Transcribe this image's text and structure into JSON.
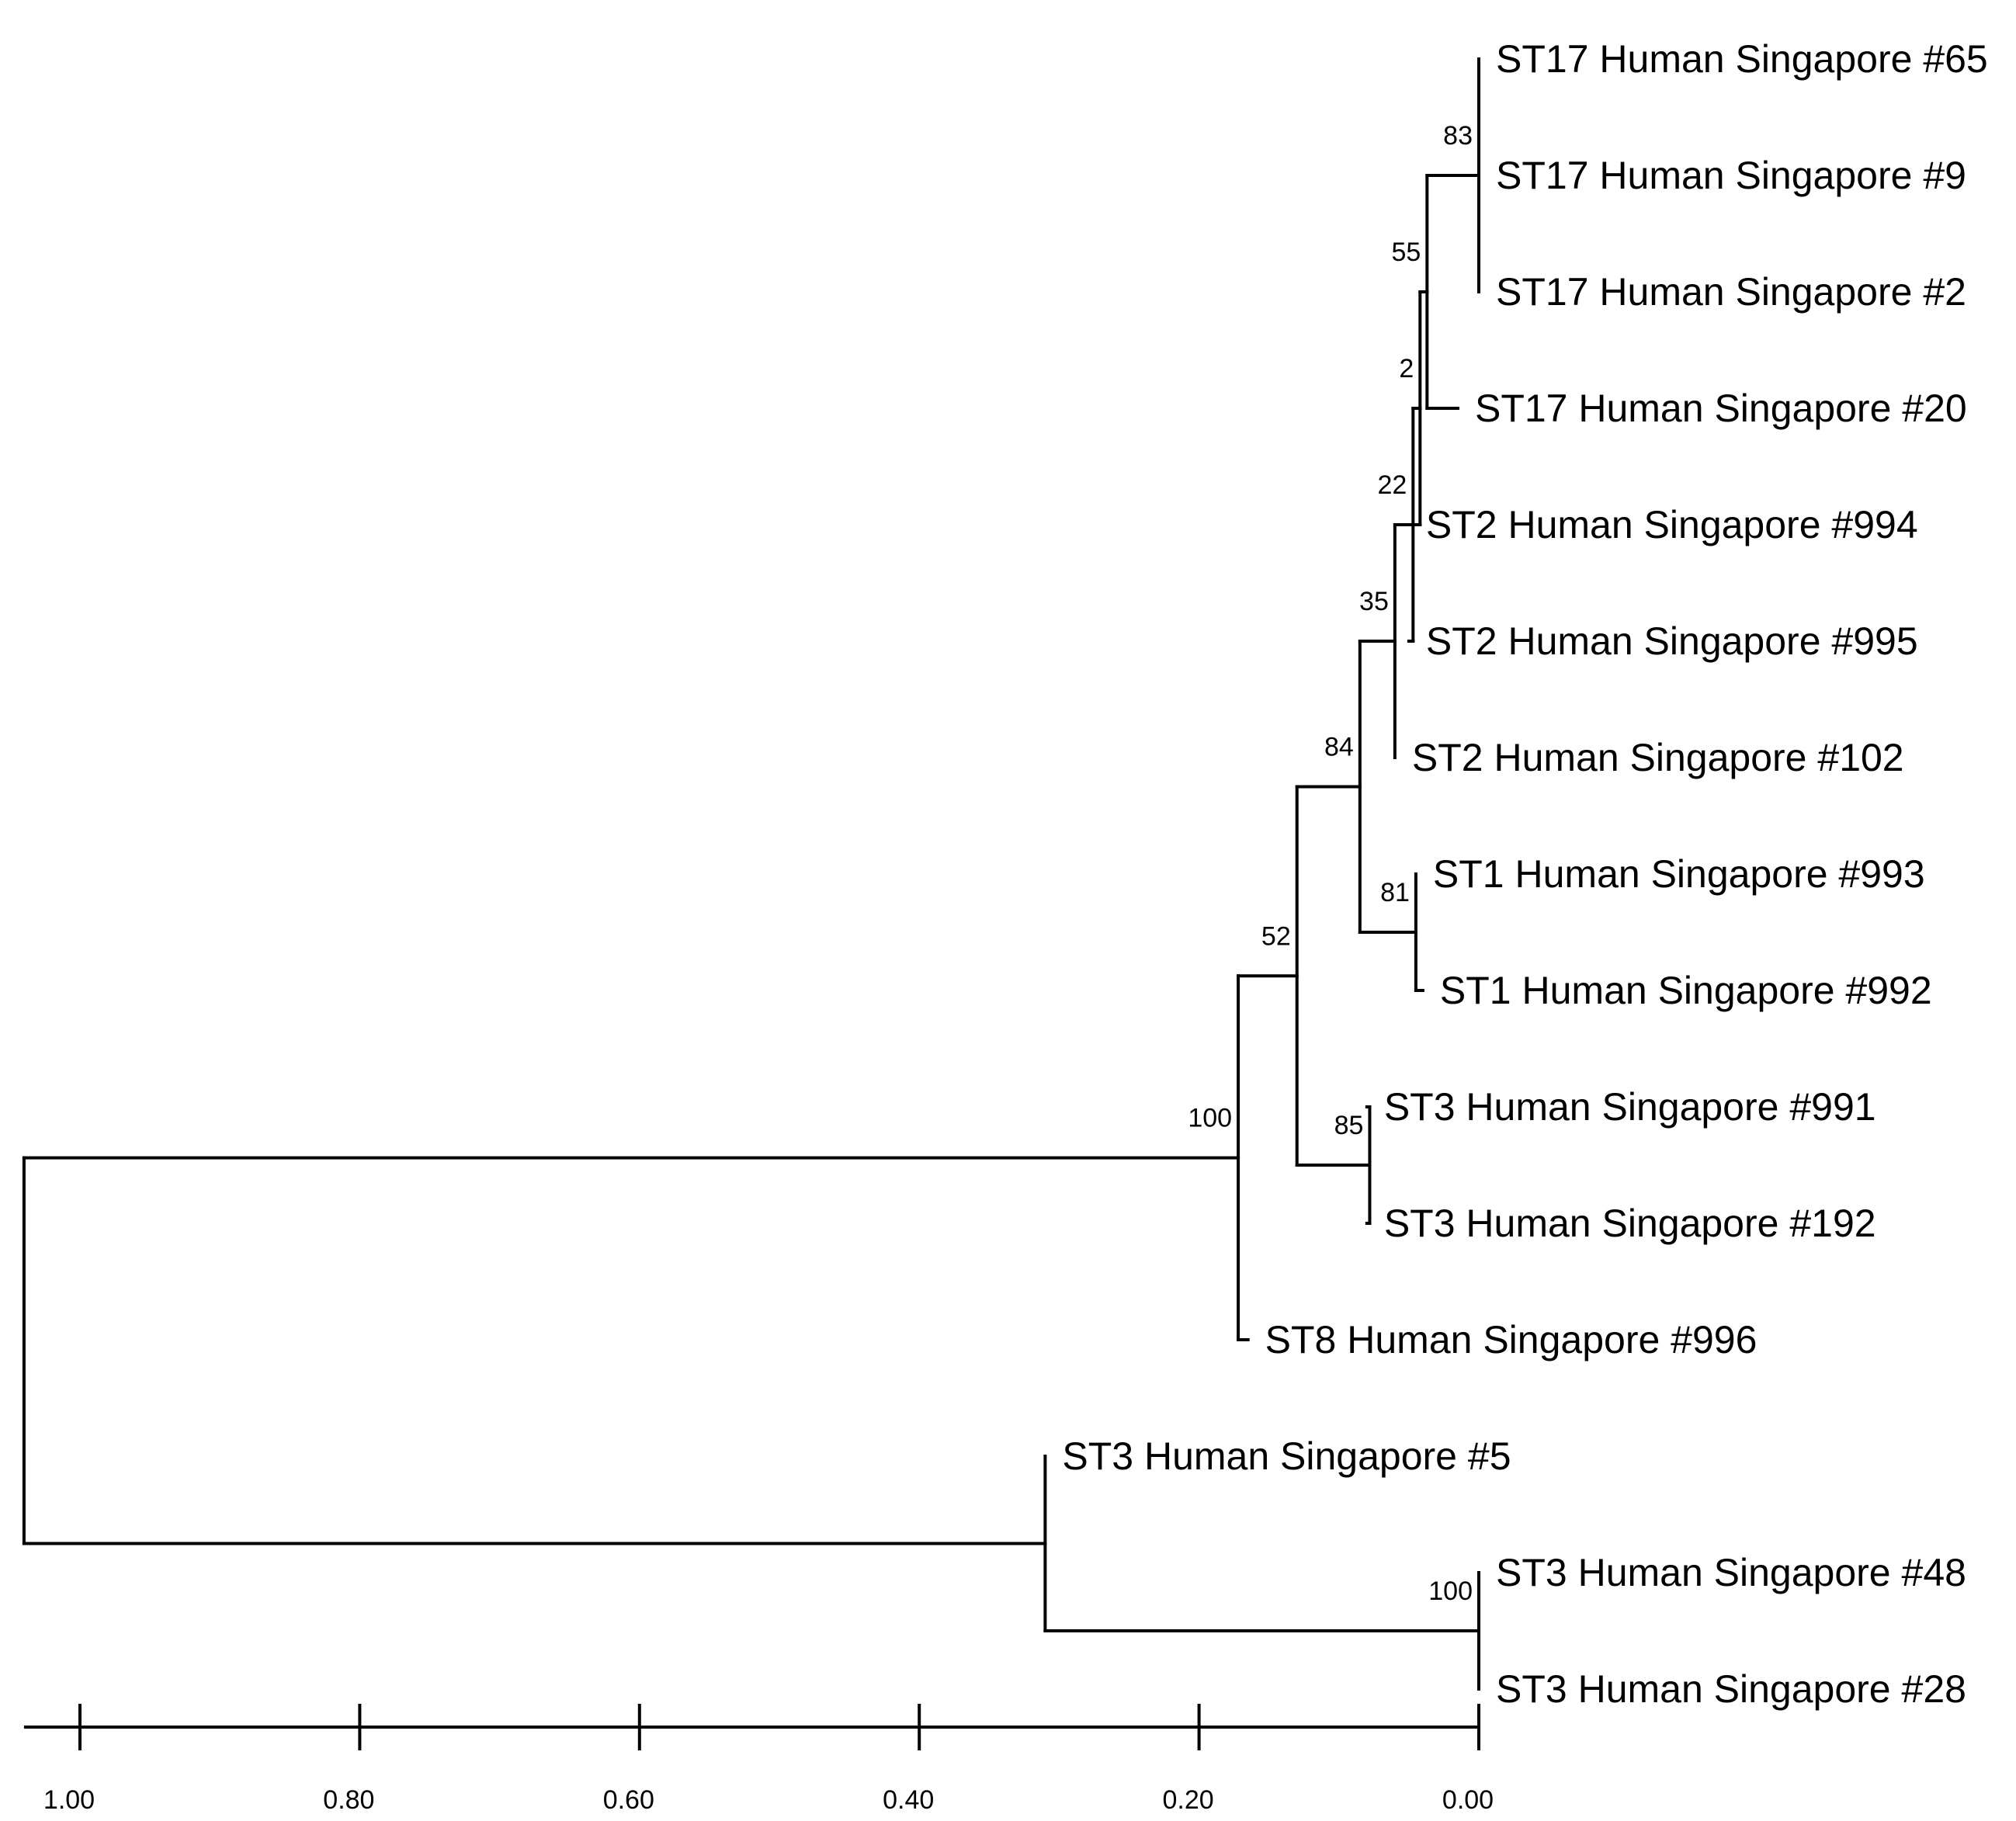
{
  "tree": {
    "leaves": [
      {
        "id": "L0",
        "label": "ST17 Human Singapore #65"
      },
      {
        "id": "L1",
        "label": "ST17 Human Singapore #9"
      },
      {
        "id": "L2",
        "label": "ST17 Human Singapore #2"
      },
      {
        "id": "L3",
        "label": "ST17 Human Singapore #20"
      },
      {
        "id": "L4",
        "label": "ST2 Human Singapore #994"
      },
      {
        "id": "L5",
        "label": "ST2 Human Singapore #995"
      },
      {
        "id": "L6",
        "label": "ST2 Human Singapore #102"
      },
      {
        "id": "L7",
        "label": "ST1 Human Singapore #993"
      },
      {
        "id": "L8",
        "label": "ST1 Human Singapore #992"
      },
      {
        "id": "L9",
        "label": "ST3 Human Singapore #991"
      },
      {
        "id": "L10",
        "label": "ST3 Human Singapore #192"
      },
      {
        "id": "L11",
        "label": "ST8 Human Singapore #996"
      },
      {
        "id": "L12",
        "label": "ST3 Human Singapore #5"
      },
      {
        "id": "L13",
        "label": "ST3 Human Singapore #48"
      },
      {
        "id": "L14",
        "label": "ST3 Human Singapore #28"
      }
    ],
    "leaf_heights": {
      "L0": 0.0,
      "L1": 0.0,
      "L2": 0.0,
      "L3": 0.015,
      "L4": 0.05,
      "L5": 0.05,
      "L6": 0.06,
      "L7": 0.045,
      "L8": 0.04,
      "L9": 0.08,
      "L10": 0.08,
      "L11": 0.165,
      "L12": 0.31,
      "L13": 0.0,
      "L14": 0.0
    },
    "internal_nodes": [
      {
        "id": "N83",
        "children": [
          "L0",
          "L1",
          "L2"
        ],
        "height": 0.0,
        "support": "83"
      },
      {
        "id": "N55",
        "children": [
          "N83",
          "L3"
        ],
        "height": 0.037,
        "support": "55"
      },
      {
        "id": "N2",
        "children": [
          "N55",
          "L4"
        ],
        "height": 0.042,
        "support": "2"
      },
      {
        "id": "N22",
        "children": [
          "N2",
          "L5"
        ],
        "height": 0.047,
        "support": "22"
      },
      {
        "id": "N35",
        "children": [
          "N22",
          "L6"
        ],
        "height": 0.06,
        "support": "35"
      },
      {
        "id": "N81",
        "children": [
          "L7",
          "L8"
        ],
        "height": 0.045,
        "support": "81"
      },
      {
        "id": "N84",
        "children": [
          "N35",
          "N81"
        ],
        "height": 0.085,
        "support": "84"
      },
      {
        "id": "N85",
        "children": [
          "L9",
          "L10"
        ],
        "height": 0.078,
        "support": "85"
      },
      {
        "id": "N52",
        "children": [
          "N84",
          "N85"
        ],
        "height": 0.13,
        "support": "52"
      },
      {
        "id": "N100a",
        "children": [
          "N52",
          "L11"
        ],
        "height": 0.172,
        "support": "100"
      },
      {
        "id": "N100b",
        "children": [
          "L13",
          "L14"
        ],
        "height": 0.0,
        "support": "100"
      },
      {
        "id": "NB",
        "children": [
          "L12",
          "N100b"
        ],
        "height": 0.31,
        "support": ""
      },
      {
        "id": "ROOT",
        "children": [
          "N100a",
          "NB"
        ],
        "height": 1.04,
        "support": ""
      }
    ]
  },
  "axis": {
    "ticks": [
      {
        "value": 1.0,
        "label": "1.00"
      },
      {
        "value": 0.8,
        "label": "0.80"
      },
      {
        "value": 0.6,
        "label": "0.60"
      },
      {
        "value": 0.4,
        "label": "0.40"
      },
      {
        "value": 0.2,
        "label": "0.20"
      },
      {
        "value": 0.0,
        "label": "0.00"
      }
    ],
    "range": [
      1.04,
      0.0
    ]
  }
}
